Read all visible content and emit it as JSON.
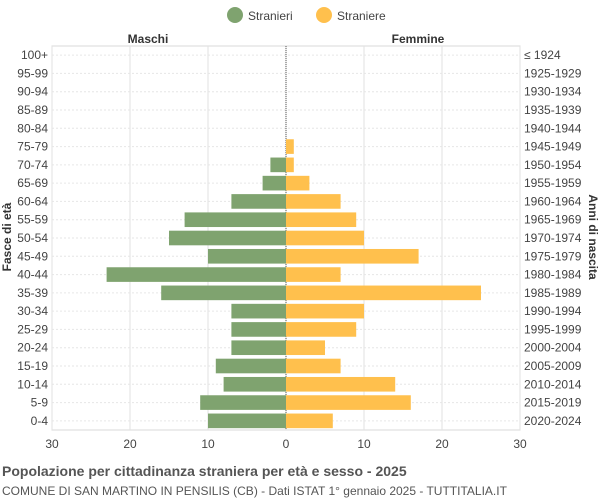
{
  "chart_data": {
    "type": "bar",
    "orientation": "horizontal",
    "title": "Popolazione per cittadinanza straniera per età e sesso - 2025",
    "subtitle": "COMUNE DI SAN MARTINO IN PENSILIS (CB) - Dati ISTAT 1° gennaio 2025 - TUTTITALIA.IT",
    "ylabel_left": "Fasce di età",
    "ylabel_right": "Anni di nascita",
    "left_header": "Maschi",
    "right_header": "Femmine",
    "categories": [
      "100+",
      "95-99",
      "90-94",
      "85-89",
      "80-84",
      "75-79",
      "70-74",
      "65-69",
      "60-64",
      "55-59",
      "50-54",
      "45-49",
      "40-44",
      "35-39",
      "30-34",
      "25-29",
      "20-24",
      "15-19",
      "10-14",
      "5-9",
      "0-4"
    ],
    "birth_years": [
      "≤ 1924",
      "1925-1929",
      "1930-1934",
      "1935-1939",
      "1940-1944",
      "1945-1949",
      "1950-1954",
      "1955-1959",
      "1960-1964",
      "1965-1969",
      "1970-1974",
      "1975-1979",
      "1980-1984",
      "1985-1989",
      "1990-1994",
      "1995-1999",
      "2000-2004",
      "2005-2009",
      "2010-2014",
      "2015-2019",
      "2020-2024"
    ],
    "series": [
      {
        "name": "Stranieri",
        "color": "#7fa36f",
        "values": [
          0,
          0,
          0,
          0,
          0,
          0,
          2,
          3,
          7,
          13,
          15,
          10,
          23,
          16,
          7,
          7,
          7,
          9,
          8,
          11,
          10
        ]
      },
      {
        "name": "Straniere",
        "color": "#ffc04d",
        "values": [
          0,
          0,
          0,
          0,
          0,
          1,
          1,
          3,
          7,
          9,
          10,
          17,
          7,
          25,
          10,
          9,
          5,
          7,
          14,
          16,
          6
        ]
      }
    ],
    "xlim": [
      -30,
      30
    ],
    "xticks": [
      "30",
      "20",
      "10",
      "0",
      "10",
      "20",
      "30"
    ],
    "grid": true,
    "legend_position": "top-center"
  }
}
